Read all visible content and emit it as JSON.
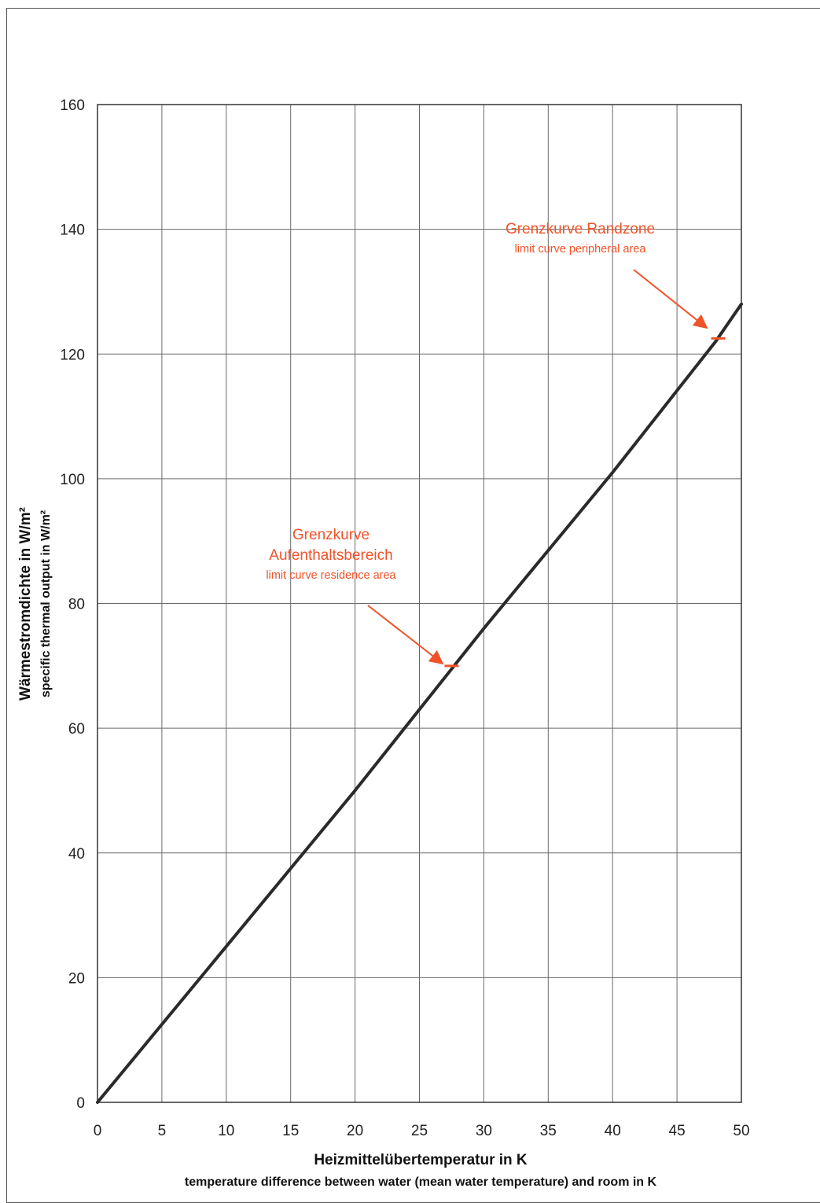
{
  "chart_data": {
    "type": "line",
    "title": "",
    "xlabel": "Heizmittelübertemperatur in K",
    "xlabel_sub": "temperature difference between water (mean water temperature) and room in K",
    "ylabel": "Wärmestromdichte in W/m²",
    "ylabel_sub": "specific thermal output in W/m²",
    "xlim": [
      0,
      50
    ],
    "ylim": [
      0,
      160
    ],
    "x_ticks": [
      0,
      5,
      10,
      15,
      20,
      25,
      30,
      35,
      40,
      45,
      50
    ],
    "y_ticks": [
      0,
      20,
      40,
      60,
      80,
      100,
      120,
      140,
      160
    ],
    "grid": true,
    "series": [
      {
        "x": [
          0,
          10,
          20,
          30,
          40,
          48,
          50
        ],
        "y": [
          0,
          25,
          50,
          76,
          101,
          122,
          128
        ]
      }
    ],
    "line_color": "#2a2a2a",
    "annotation_color": "#f0532a",
    "annotations": [
      {
        "lines": [
          "Grenzkurve Randzone"
        ],
        "sub": "limit curve peripheral area",
        "x": 48.2,
        "y": 122.5
      },
      {
        "lines": [
          "Grenzkurve",
          "Aufenthaltsbereich"
        ],
        "sub": "limit curve residence area",
        "x": 27.5,
        "y": 70
      }
    ]
  }
}
